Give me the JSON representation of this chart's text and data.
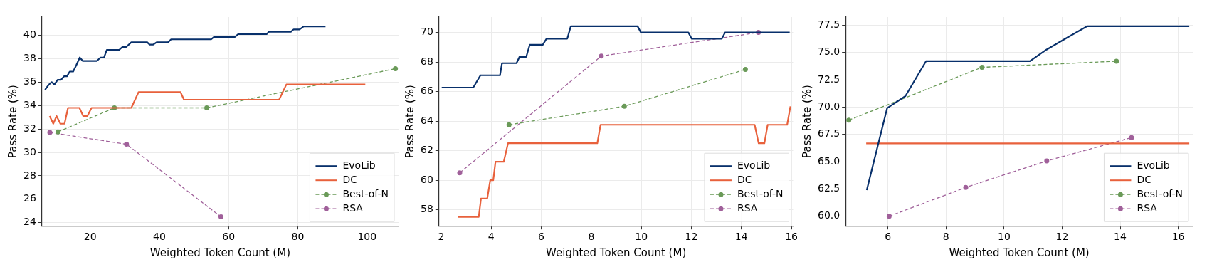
{
  "chart_data": [
    {
      "type": "line",
      "xlabel": "Weighted Token Count (M)",
      "ylabel": "Pass Rate (%)",
      "xlim": [
        6.05,
        109.1
      ],
      "ylim": [
        23.73,
        41.55
      ],
      "xticks": [
        20,
        40,
        60,
        80,
        100
      ],
      "yticks": [
        24,
        26,
        28,
        30,
        32,
        34,
        36,
        38,
        40
      ],
      "grid": true,
      "legend": "bottom right",
      "series": [
        {
          "name": "EvoLib",
          "color": "#08306b",
          "line_style": "solid",
          "marker": "none",
          "x": [
            6.97,
            7.97,
            8.9,
            9.7,
            10.6,
            11.6,
            12.5,
            13.3,
            14.1,
            15.1,
            16.0,
            17.0,
            17.9,
            21.9,
            23.0,
            24.0,
            24.8,
            28.4,
            29.3,
            30.4,
            31.9,
            36.5,
            37.2,
            38.2,
            39.2,
            42.5,
            43.4,
            54.9,
            55.8,
            61.8,
            62.8,
            71.0,
            71.7,
            78.0,
            78.8,
            80.5,
            81.7,
            88.0
          ],
          "values": [
            35.34,
            35.76,
            36.0,
            35.8,
            36.2,
            36.2,
            36.5,
            36.5,
            36.9,
            36.9,
            37.45,
            38.1,
            37.8,
            37.8,
            38.1,
            38.1,
            38.75,
            38.75,
            39.0,
            39.0,
            39.4,
            39.4,
            39.2,
            39.2,
            39.4,
            39.4,
            39.65,
            39.65,
            39.85,
            39.85,
            40.1,
            40.1,
            40.3,
            40.3,
            40.5,
            40.5,
            40.75,
            40.75
          ]
        },
        {
          "name": "DC",
          "color": "#e8613c",
          "line_style": "solid",
          "marker": "none",
          "x": [
            8.3,
            9.35,
            10.3,
            11.4,
            12.6,
            13.6,
            16.9,
            18.0,
            19.2,
            20.4,
            31.9,
            34.0,
            46.1,
            47.1,
            74.6,
            76.7,
            99.5
          ],
          "values": [
            33.1,
            32.45,
            33.1,
            32.45,
            32.45,
            33.8,
            33.8,
            33.1,
            33.1,
            33.8,
            33.8,
            35.15,
            35.15,
            34.5,
            34.5,
            35.8,
            35.8
          ]
        },
        {
          "name": "Best-of-N",
          "color": "#6a9a58",
          "line_style": "dashed",
          "marker": "circle",
          "x": [
            10.7,
            27.0,
            53.7,
            108.2
          ],
          "values": [
            31.75,
            33.8,
            33.8,
            37.15
          ]
        },
        {
          "name": "RSA",
          "color": "#a0609a",
          "line_style": "dashed",
          "marker": "circle",
          "x": [
            8.35,
            30.5,
            57.8
          ],
          "values": [
            31.7,
            30.7,
            24.5
          ]
        }
      ]
    },
    {
      "type": "line",
      "xlabel": "Weighted Token Count (M)",
      "ylabel": "Pass Rate (%)",
      "xlim": [
        1.91,
        16.07
      ],
      "ylim": [
        56.91,
        71.04
      ],
      "xticks": [
        2,
        4,
        6,
        8,
        10,
        12,
        14,
        16
      ],
      "yticks": [
        58,
        60,
        62,
        64,
        66,
        68,
        70
      ],
      "grid": true,
      "legend": "bottom right",
      "series": [
        {
          "name": "EvoLib",
          "color": "#08306b",
          "line_style": "solid",
          "marker": "none",
          "x": [
            2.02,
            3.28,
            3.57,
            4.35,
            4.43,
            5.01,
            5.13,
            5.4,
            5.54,
            6.06,
            6.21,
            7.04,
            7.18,
            9.85,
            9.98,
            11.88,
            12.01,
            13.22,
            13.35,
            15.93
          ],
          "values": [
            66.27,
            66.27,
            67.1,
            67.1,
            67.92,
            67.92,
            68.35,
            68.35,
            69.17,
            69.17,
            69.58,
            69.58,
            70.42,
            70.42,
            70.0,
            70.0,
            69.58,
            69.58,
            70.0,
            70.0
          ]
        },
        {
          "name": "DC",
          "color": "#e8613c",
          "line_style": "solid",
          "marker": "none",
          "x": [
            2.66,
            3.5,
            3.59,
            3.84,
            3.96,
            4.08,
            4.17,
            4.5,
            4.67,
            8.24,
            8.37,
            14.53,
            14.69,
            14.92,
            15.05,
            15.83,
            15.96
          ],
          "values": [
            57.52,
            57.52,
            58.76,
            58.76,
            60.0,
            60.0,
            61.25,
            61.25,
            62.5,
            62.5,
            63.75,
            63.75,
            62.5,
            62.5,
            63.75,
            63.75,
            65.0
          ]
        },
        {
          "name": "Best-of-N",
          "color": "#6a9a58",
          "line_style": "dashed",
          "marker": "circle",
          "x": [
            4.71,
            9.32,
            14.16
          ],
          "values": [
            63.75,
            65.0,
            67.5
          ]
        },
        {
          "name": "RSA",
          "color": "#a0609a",
          "line_style": "dashed",
          "marker": "circle",
          "x": [
            2.74,
            8.4,
            14.68
          ],
          "values": [
            60.5,
            68.4,
            70.0
          ]
        }
      ]
    },
    {
      "type": "line",
      "xlabel": "Weighted Token Count (M)",
      "ylabel": "Pass Rate (%)",
      "xlim": [
        4.54,
        16.5
      ],
      "ylim": [
        59.12,
        78.24
      ],
      "xticks": [
        6,
        8,
        10,
        12,
        14,
        16
      ],
      "yticks": [
        {
          "value": 60,
          "label": "60.0"
        },
        {
          "value": 62.5,
          "label": "62.5"
        },
        {
          "value": 65,
          "label": "65.0"
        },
        {
          "value": 67.5,
          "label": "67.5"
        },
        {
          "value": 70,
          "label": "70.0"
        },
        {
          "value": 72.5,
          "label": "72.5"
        },
        {
          "value": 75,
          "label": "75.0"
        },
        {
          "value": 77.5,
          "label": "77.5"
        }
      ],
      "grid": true,
      "legend": "bottom right",
      "series": [
        {
          "name": "EvoLib",
          "color": "#08306b",
          "line_style": "solid",
          "marker": "none",
          "x": [
            5.27,
            5.97,
            6.6,
            7.31,
            10.89,
            11.46,
            12.23,
            12.86,
            16.38
          ],
          "values": [
            62.4,
            69.9,
            71.0,
            74.2,
            74.2,
            75.26,
            76.45,
            77.4,
            77.4
          ]
        },
        {
          "name": "DC",
          "color": "#e8613c",
          "line_style": "solid",
          "marker": "none",
          "x": [
            5.25,
            16.38
          ],
          "values": [
            66.67,
            66.67
          ]
        },
        {
          "name": "Best-of-N",
          "color": "#6a9a58",
          "line_style": "dashed",
          "marker": "circle",
          "x": [
            4.65,
            9.24,
            13.87
          ],
          "values": [
            68.8,
            73.64,
            74.2
          ]
        },
        {
          "name": "RSA",
          "color": "#a0609a",
          "line_style": "dashed",
          "marker": "circle",
          "x": [
            6.04,
            8.68,
            11.47,
            14.39
          ],
          "values": [
            60.0,
            62.64,
            65.07,
            67.2
          ]
        }
      ]
    }
  ]
}
